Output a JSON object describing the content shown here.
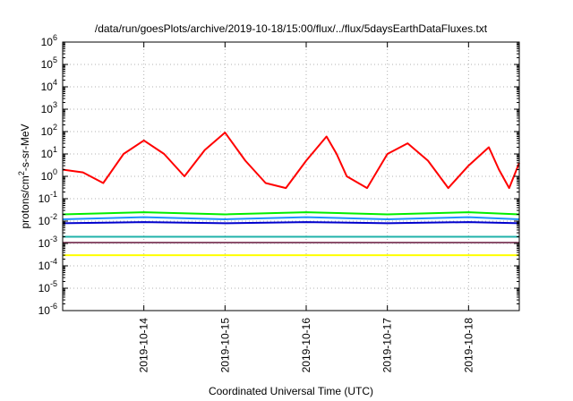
{
  "chart_data": {
    "type": "line",
    "title": "/data/run/goesPlots/archive/2019-10-18/15:00/flux/../flux/5daysEarthDataFluxes.txt",
    "xlabel": "Coordinated Universal Time (UTC)",
    "ylabel": {
      "base": "protons/cm",
      "sup": "2",
      "rest": "-s-sr-MeV"
    },
    "y_scale": "log",
    "ylim": [
      1e-06,
      1000000.0
    ],
    "xlim": [
      "2019-10-13 00:00",
      "2019-10-18 15:00"
    ],
    "y_ticks": [
      {
        "value": 1e-06,
        "base": "10",
        "exp": "-6"
      },
      {
        "value": 1e-05,
        "base": "10",
        "exp": "-5"
      },
      {
        "value": 0.0001,
        "base": "10",
        "exp": "-4"
      },
      {
        "value": 0.001,
        "base": "10",
        "exp": "-3"
      },
      {
        "value": 0.01,
        "base": "10",
        "exp": "-2"
      },
      {
        "value": 0.1,
        "base": "10",
        "exp": "-1"
      },
      {
        "value": 1,
        "base": "10",
        "exp": "0"
      },
      {
        "value": 10,
        "base": "10",
        "exp": "1"
      },
      {
        "value": 100,
        "base": "10",
        "exp": "2"
      },
      {
        "value": 1000,
        "base": "10",
        "exp": "3"
      },
      {
        "value": 10000,
        "base": "10",
        "exp": "4"
      },
      {
        "value": 100000,
        "base": "10",
        "exp": "5"
      },
      {
        "value": 1000000,
        "base": "10",
        "exp": "6"
      }
    ],
    "x_ticks": [
      "2019-10-14",
      "2019-10-15",
      "2019-10-16",
      "2019-10-17",
      "2019-10-18"
    ],
    "grid": true,
    "legend": "none",
    "series": [
      {
        "color": "#ff0000",
        "x": [
          "2019-10-13 00:00",
          "2019-10-13 06:00",
          "2019-10-13 12:00",
          "2019-10-13 18:00",
          "2019-10-14 00:00",
          "2019-10-14 06:00",
          "2019-10-14 12:00",
          "2019-10-14 18:00",
          "2019-10-15 00:00",
          "2019-10-15 06:00",
          "2019-10-15 12:00",
          "2019-10-15 18:00",
          "2019-10-16 00:00",
          "2019-10-16 06:00",
          "2019-10-16 09:00",
          "2019-10-16 12:00",
          "2019-10-16 18:00",
          "2019-10-17 00:00",
          "2019-10-17 06:00",
          "2019-10-17 12:00",
          "2019-10-17 18:00",
          "2019-10-18 00:00",
          "2019-10-18 06:00",
          "2019-10-18 09:00",
          "2019-10-18 12:00",
          "2019-10-18 15:00"
        ],
        "y": [
          2,
          1.5,
          0.5,
          10,
          40,
          10,
          1,
          15,
          90,
          5,
          0.5,
          0.3,
          5,
          60,
          10,
          1,
          0.3,
          10,
          30,
          5,
          0.3,
          3,
          20,
          2,
          0.3,
          4
        ]
      },
      {
        "color": "#00ee00",
        "x": [
          "2019-10-13 00:00",
          "2019-10-14 00:00",
          "2019-10-15 00:00",
          "2019-10-16 00:00",
          "2019-10-17 00:00",
          "2019-10-18 00:00",
          "2019-10-18 15:00"
        ],
        "y": [
          0.02,
          0.025,
          0.02,
          0.025,
          0.02,
          0.025,
          0.02
        ]
      },
      {
        "color": "#1e90ff",
        "x": [
          "2019-10-13 00:00",
          "2019-10-14 00:00",
          "2019-10-15 00:00",
          "2019-10-16 00:00",
          "2019-10-17 00:00",
          "2019-10-18 00:00",
          "2019-10-18 15:00"
        ],
        "y": [
          0.012,
          0.015,
          0.012,
          0.015,
          0.012,
          0.015,
          0.012
        ]
      },
      {
        "color": "#0000cd",
        "x": [
          "2019-10-13 00:00",
          "2019-10-14 00:00",
          "2019-10-15 00:00",
          "2019-10-16 00:00",
          "2019-10-17 00:00",
          "2019-10-18 00:00",
          "2019-10-18 15:00"
        ],
        "y": [
          0.008,
          0.009,
          0.008,
          0.009,
          0.008,
          0.009,
          0.008
        ]
      },
      {
        "color": "#20b2aa",
        "x": [
          "2019-10-13 00:00",
          "2019-10-14 00:00",
          "2019-10-15 00:00",
          "2019-10-16 00:00",
          "2019-10-17 00:00",
          "2019-10-18 00:00",
          "2019-10-18 15:00"
        ],
        "y": [
          0.002,
          0.002,
          0.002,
          0.002,
          0.002,
          0.002,
          0.002
        ]
      },
      {
        "color": "#8b4f6b",
        "x": [
          "2019-10-13 00:00",
          "2019-10-14 00:00",
          "2019-10-15 00:00",
          "2019-10-16 00:00",
          "2019-10-17 00:00",
          "2019-10-18 00:00",
          "2019-10-18 15:00"
        ],
        "y": [
          0.0011,
          0.0011,
          0.0011,
          0.0011,
          0.0011,
          0.0011,
          0.0011
        ]
      },
      {
        "color": "#ffff00",
        "x": [
          "2019-10-13 00:00",
          "2019-10-14 00:00",
          "2019-10-15 00:00",
          "2019-10-16 00:00",
          "2019-10-17 00:00",
          "2019-10-18 00:00",
          "2019-10-18 15:00"
        ],
        "y": [
          0.0003,
          0.0003,
          0.0003,
          0.0003,
          0.0003,
          0.0003,
          0.0003
        ]
      }
    ]
  }
}
